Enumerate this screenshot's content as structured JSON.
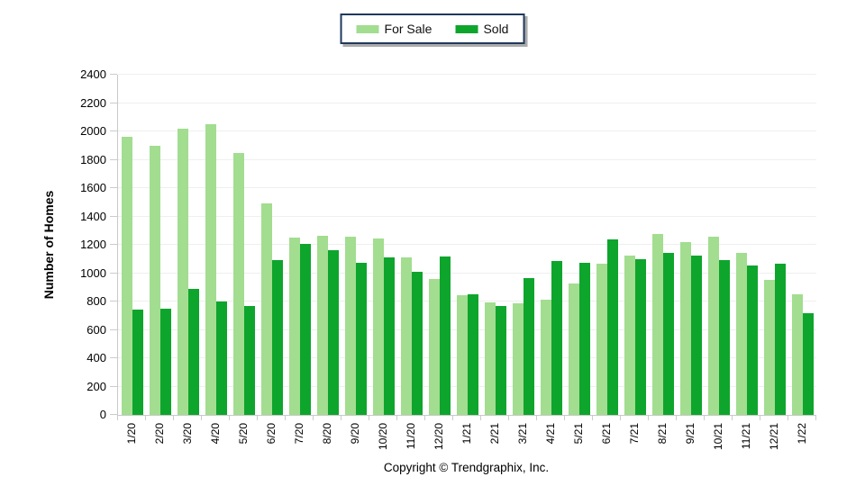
{
  "legend": {
    "items": [
      {
        "label": "For Sale",
        "color": "#A2DD90"
      },
      {
        "label": "Sold",
        "color": "#0EA52C"
      }
    ]
  },
  "footer": {
    "copyright": "Copyright © Trendgraphix, Inc."
  },
  "colors": {
    "for_sale": "#A2DD90",
    "sold": "#0EA52C",
    "grid": "#EFEFEF",
    "axis": "#C9C9C9",
    "legend_border": "#20395C",
    "legend_shadow": "#ABABAB"
  },
  "chart_data": {
    "type": "bar",
    "title": "",
    "xlabel": "",
    "ylabel": "Number of Homes",
    "ylim": [
      0,
      2400
    ],
    "ytick_step": 200,
    "grid": true,
    "legend_position": "top-center",
    "categories": [
      "1/20",
      "2/20",
      "3/20",
      "4/20",
      "5/20",
      "6/20",
      "7/20",
      "8/20",
      "9/20",
      "10/20",
      "11/20",
      "12/20",
      "1/21",
      "2/21",
      "3/21",
      "4/21",
      "5/21",
      "6/21",
      "7/21",
      "8/21",
      "9/21",
      "10/21",
      "11/21",
      "12/21",
      "1/22"
    ],
    "series": [
      {
        "name": "For Sale",
        "color": "#A2DD90",
        "values": [
          1965,
          1900,
          2020,
          2050,
          1845,
          1490,
          1250,
          1265,
          1260,
          1245,
          1110,
          960,
          845,
          795,
          790,
          815,
          925,
          1065,
          1125,
          1275,
          1220,
          1255,
          1145,
          955,
          850
        ]
      },
      {
        "name": "Sold",
        "color": "#0EA52C",
        "values": [
          745,
          750,
          890,
          800,
          770,
          1095,
          1205,
          1165,
          1070,
          1110,
          1010,
          1120,
          850,
          770,
          965,
          1085,
          1070,
          1240,
          1100,
          1145,
          1125,
          1090,
          1055,
          1065,
          715
        ]
      }
    ]
  }
}
